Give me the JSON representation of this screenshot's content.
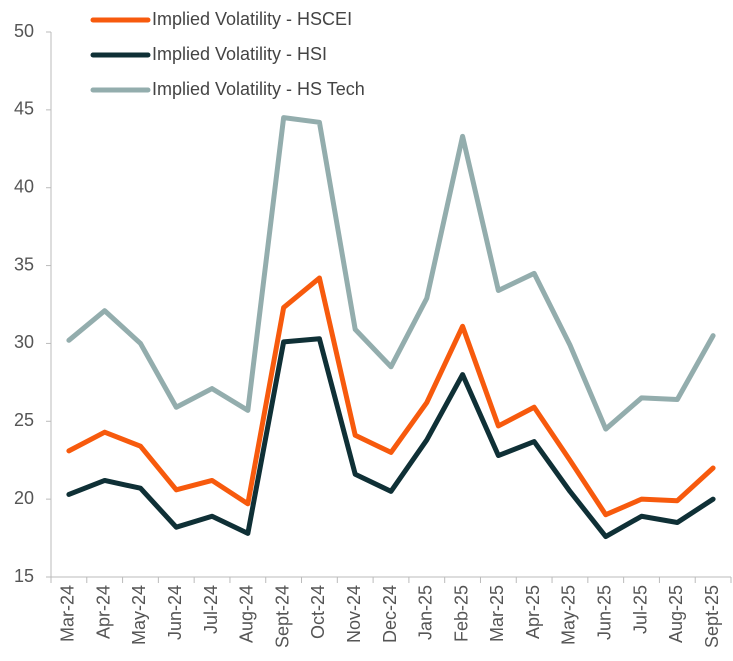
{
  "chart_data": {
    "type": "line",
    "categories": [
      "Mar-24",
      "Apr-24",
      "May-24",
      "Jun-24",
      "Jul-24",
      "Aug-24",
      "Sept-24",
      "Oct-24",
      "Nov-24",
      "Dec-24",
      "Jan-25",
      "Feb-25",
      "Mar-25",
      "Apr-25",
      "May-25",
      "Jun-25",
      "Jul-25",
      "Aug-25",
      "Sept-25"
    ],
    "series": [
      {
        "name": "Implied Volatility - HSCEI",
        "color": "#f75a0d",
        "values": [
          23.1,
          24.3,
          23.4,
          20.6,
          21.2,
          19.7,
          32.3,
          34.2,
          24.1,
          23.0,
          26.2,
          31.1,
          24.7,
          25.9,
          22.5,
          19.0,
          20.0,
          19.9,
          22.0
        ]
      },
      {
        "name": "Implied Volatility - HSI",
        "color": "#0f3036",
        "values": [
          20.3,
          21.2,
          20.7,
          18.2,
          18.9,
          17.8,
          30.1,
          30.3,
          21.6,
          20.5,
          23.8,
          28.0,
          22.8,
          23.7,
          20.5,
          17.6,
          18.9,
          18.5,
          20.0
        ]
      },
      {
        "name": "Implied Volatility - HS Tech",
        "color": "#93adad",
        "values": [
          30.2,
          32.1,
          30.0,
          25.9,
          27.1,
          25.7,
          44.5,
          44.2,
          30.9,
          28.5,
          32.9,
          43.3,
          33.4,
          34.5,
          29.9,
          24.5,
          26.5,
          26.4,
          30.5
        ]
      }
    ],
    "ylim": [
      15,
      50
    ],
    "yticks": [
      15,
      20,
      25,
      30,
      35,
      40,
      45,
      50
    ],
    "grid": false,
    "legend": "top-left"
  }
}
